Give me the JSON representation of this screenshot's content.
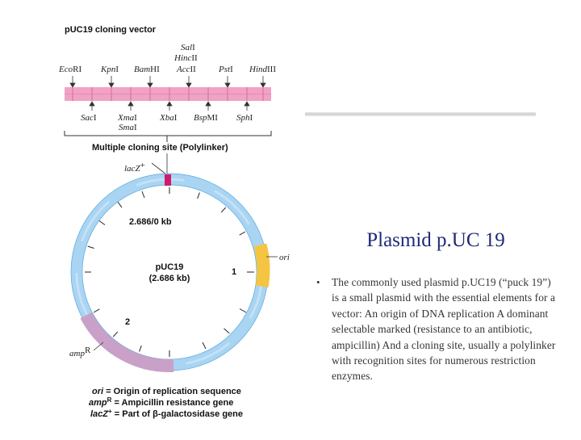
{
  "slide": {
    "title": "Plasmid p.UC 19",
    "bullet": "•",
    "body": "The commonly used plasmid p.UC19 (“puck 19”) is a small plasmid with the essential elements for a vector: An origin of DNA replication A dominant selectable marked (resistance to an antibiotic, ampicillin) And a cloning site, usually a polylinker with recognition sites for numerous restriction enzymes."
  },
  "figure": {
    "heading": "pUC19 cloning vector",
    "polylinker_label": "Multiple cloning site (Polylinker)",
    "top_sites": [
      {
        "italic": "Eco",
        "plain": "RI"
      },
      {
        "italic": "Kpn",
        "plain": "I"
      },
      {
        "italic": "Bam",
        "plain": "HI"
      },
      {
        "italic": "Sal",
        "plain": "I"
      },
      {
        "italic": "Hinc",
        "plain": "II"
      },
      {
        "italic": "Acc",
        "plain": "II"
      },
      {
        "italic": "Pst",
        "plain": "I"
      },
      {
        "italic": "Hind",
        "plain": "III"
      }
    ],
    "bottom_sites": [
      {
        "italic": "Sac",
        "plain": "I"
      },
      {
        "italic": "Xma",
        "plain": "I"
      },
      {
        "italic": "Sma",
        "plain": "I"
      },
      {
        "italic": "Xba",
        "plain": "I"
      },
      {
        "italic": "Bsp",
        "plain": "MI"
      },
      {
        "italic": "Sph",
        "plain": "I"
      }
    ],
    "lacz_label": "lacZ",
    "lacz_sup": "+",
    "origin_label": "2.686/0 kb",
    "center_name": "pUC19",
    "center_size": "(2.686 kb)",
    "tick_1": "1",
    "tick_2": "2",
    "ori_label": "ori",
    "amp_label": "amp",
    "amp_sup": "R",
    "legend": [
      {
        "key": "ori",
        "sup": "",
        "text": "= Origin of replication sequence"
      },
      {
        "key": "amp",
        "sup": "R",
        "text": "= Ampicillin resistance gene"
      },
      {
        "key": "lacZ",
        "sup": "+",
        "text": "= Part of β-galactosidase gene"
      }
    ],
    "colors": {
      "plasmid": "#a9d4f2",
      "polylinker_bar": "#f0a3c4",
      "ori": "#f5c542",
      "amp": "#c9a0c8",
      "lacz": "#d01a6e",
      "title_text": "#1f2a78"
    }
  }
}
